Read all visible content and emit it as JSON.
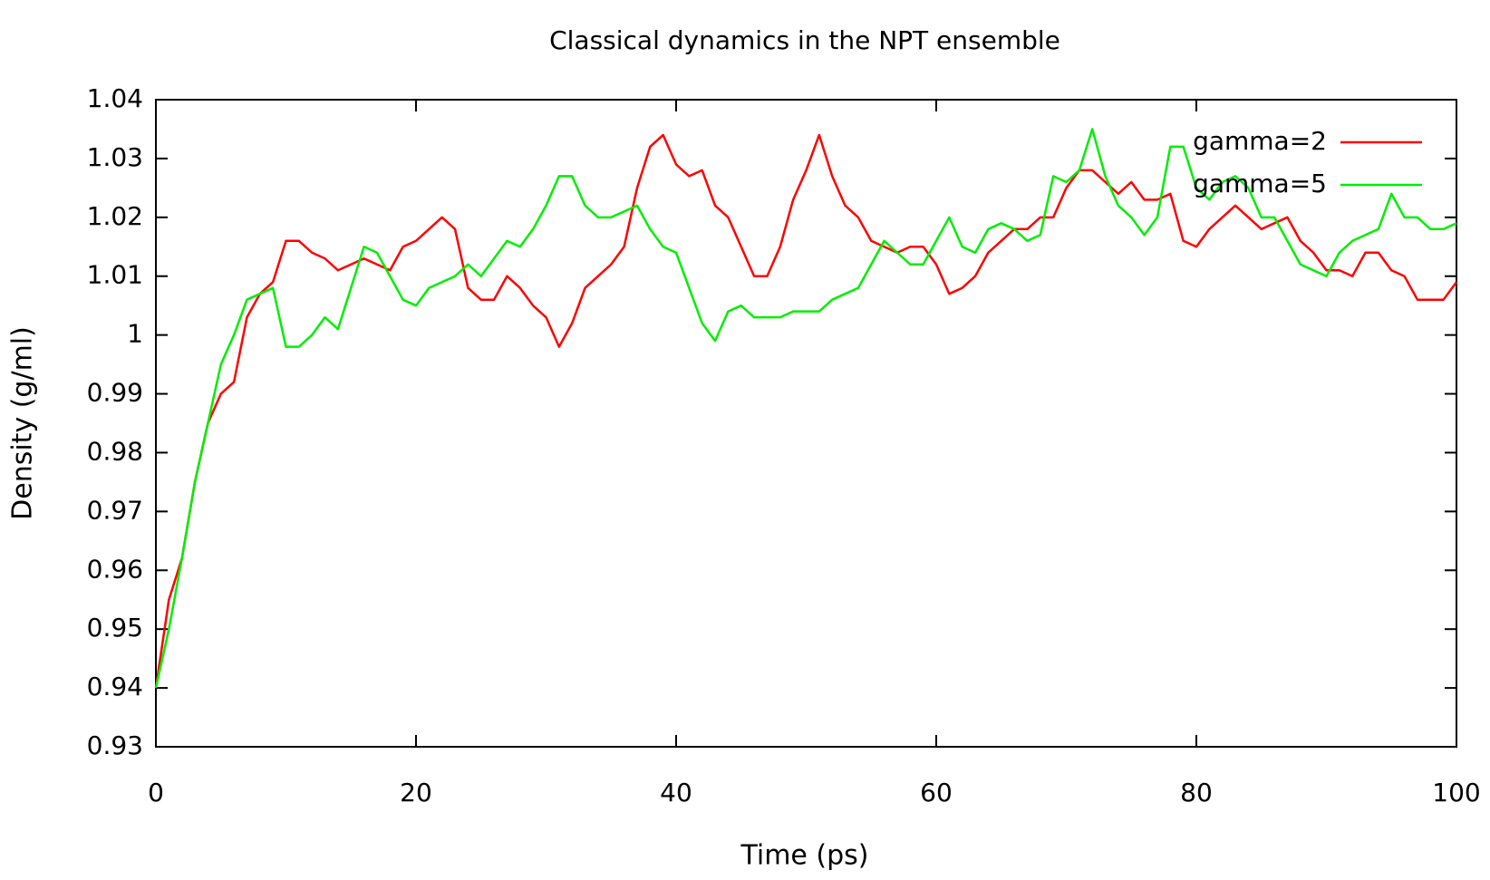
{
  "chart_data": {
    "type": "line",
    "title": "Classical dynamics in the NPT ensemble",
    "x_label": "Time (ps)",
    "y_label": "Density (g/ml)",
    "x": [
      0,
      1,
      2,
      3,
      4,
      5,
      6,
      7,
      8,
      9,
      10,
      11,
      12,
      13,
      14,
      15,
      16,
      17,
      18,
      19,
      20,
      21,
      22,
      23,
      24,
      25,
      26,
      27,
      28,
      29,
      30,
      31,
      32,
      33,
      34,
      35,
      36,
      37,
      38,
      39,
      40,
      41,
      42,
      43,
      44,
      45,
      46,
      47,
      48,
      49,
      50,
      51,
      52,
      53,
      54,
      55,
      56,
      57,
      58,
      59,
      60,
      61,
      62,
      63,
      64,
      65,
      66,
      67,
      68,
      69,
      70,
      71,
      72,
      73,
      74,
      75,
      76,
      77,
      78,
      79,
      80,
      81,
      82,
      83,
      84,
      85,
      86,
      87,
      88,
      89,
      90,
      91,
      92,
      93,
      94,
      95,
      96,
      97,
      98,
      99,
      100
    ],
    "series": [
      {
        "name": "gamma=2",
        "color": "#ff0000",
        "values": [
          0.94,
          0.955,
          0.962,
          0.975,
          0.985,
          0.99,
          0.992,
          1.003,
          1.007,
          1.009,
          1.016,
          1.016,
          1.014,
          1.013,
          1.011,
          1.012,
          1.013,
          1.012,
          1.011,
          1.015,
          1.016,
          1.018,
          1.02,
          1.018,
          1.008,
          1.006,
          1.006,
          1.01,
          1.008,
          1.005,
          1.003,
          0.998,
          1.002,
          1.008,
          1.01,
          1.012,
          1.015,
          1.025,
          1.032,
          1.034,
          1.029,
          1.027,
          1.028,
          1.022,
          1.02,
          1.015,
          1.01,
          1.01,
          1.015,
          1.023,
          1.028,
          1.034,
          1.027,
          1.022,
          1.02,
          1.016,
          1.015,
          1.014,
          1.015,
          1.015,
          1.012,
          1.007,
          1.008,
          1.01,
          1.014,
          1.016,
          1.018,
          1.018,
          1.02,
          1.02,
          1.025,
          1.028,
          1.028,
          1.026,
          1.024,
          1.026,
          1.023,
          1.023,
          1.024,
          1.016,
          1.015,
          1.018,
          1.02,
          1.022,
          1.02,
          1.018,
          1.019,
          1.02,
          1.016,
          1.014,
          1.011,
          1.011,
          1.01,
          1.014,
          1.014,
          1.011,
          1.01,
          1.006,
          1.006,
          1.006,
          1.009
        ]
      },
      {
        "name": "gamma=5",
        "color": "#00ee00",
        "values": [
          0.94,
          0.95,
          0.962,
          0.975,
          0.985,
          0.995,
          1.0,
          1.006,
          1.007,
          1.008,
          0.998,
          0.998,
          1.0,
          1.003,
          1.001,
          1.008,
          1.015,
          1.014,
          1.01,
          1.006,
          1.005,
          1.008,
          1.009,
          1.01,
          1.012,
          1.01,
          1.013,
          1.016,
          1.015,
          1.018,
          1.022,
          1.027,
          1.027,
          1.022,
          1.02,
          1.02,
          1.021,
          1.022,
          1.018,
          1.015,
          1.014,
          1.008,
          1.002,
          0.999,
          1.004,
          1.005,
          1.003,
          1.003,
          1.003,
          1.004,
          1.004,
          1.004,
          1.006,
          1.007,
          1.008,
          1.012,
          1.016,
          1.014,
          1.012,
          1.012,
          1.016,
          1.02,
          1.015,
          1.014,
          1.018,
          1.019,
          1.018,
          1.016,
          1.017,
          1.027,
          1.026,
          1.028,
          1.035,
          1.027,
          1.022,
          1.02,
          1.017,
          1.02,
          1.032,
          1.032,
          1.025,
          1.023,
          1.026,
          1.027,
          1.025,
          1.02,
          1.02,
          1.016,
          1.012,
          1.011,
          1.01,
          1.014,
          1.016,
          1.017,
          1.018,
          1.024,
          1.02,
          1.02,
          1.018,
          1.018,
          1.019
        ]
      }
    ],
    "xlim": [
      0,
      100
    ],
    "xticks": [
      0,
      20,
      40,
      60,
      80,
      100
    ],
    "ylim": [
      0.93,
      1.04
    ],
    "yticks": [
      0.93,
      0.94,
      0.95,
      0.96,
      0.97,
      0.98,
      0.99,
      1,
      1.01,
      1.02,
      1.03,
      1.04
    ],
    "legend": "top-right"
  }
}
